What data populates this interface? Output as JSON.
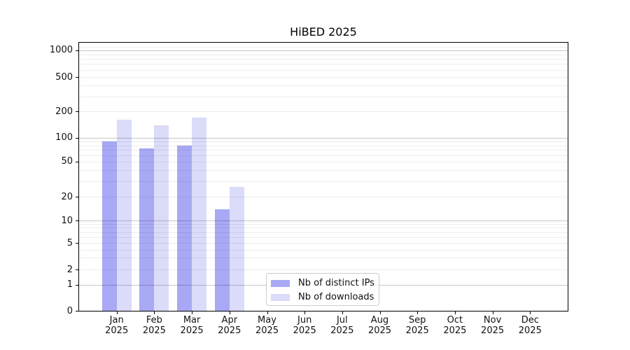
{
  "title": "HiBED 2025",
  "legend": {
    "items": [
      {
        "label": "Nb of distinct IPs",
        "color": "#a8a8f5"
      },
      {
        "label": "Nb of downloads",
        "color": "#dbdbfa"
      }
    ]
  },
  "chart_data": {
    "type": "bar",
    "title": "HiBED 2025",
    "categories": [
      "Jan 2025",
      "Feb 2025",
      "Mar 2025",
      "Apr 2025",
      "May 2025",
      "Jun 2025",
      "Jul 2025",
      "Aug 2025",
      "Sep 2025",
      "Oct 2025",
      "Nov 2025",
      "Dec 2025"
    ],
    "x_tick_months": [
      "Jan",
      "Feb",
      "Mar",
      "Apr",
      "May",
      "Jun",
      "Jul",
      "Aug",
      "Sep",
      "Oct",
      "Nov",
      "Dec"
    ],
    "x_tick_year": "2025",
    "series": [
      {
        "name": "Nb of distinct IPs",
        "color": "#a8a8f5",
        "values": [
          90,
          74,
          80,
          14,
          0,
          0,
          0,
          0,
          0,
          0,
          0,
          0
        ]
      },
      {
        "name": "Nb of downloads",
        "color": "#dbdbfa",
        "values": [
          160,
          140,
          170,
          26,
          0,
          0,
          0,
          0,
          0,
          0,
          0,
          0
        ]
      }
    ],
    "xlabel": "",
    "ylabel": "",
    "yscale": "log-like with 0 baseline",
    "yticks": [
      0,
      1,
      2,
      5,
      10,
      20,
      50,
      100,
      200,
      500,
      1000
    ],
    "ylim": [
      0,
      1200
    ],
    "grid": "on (minor log gridlines, darker lines at powers of 10)",
    "legend_position": "lower center inside plot"
  }
}
